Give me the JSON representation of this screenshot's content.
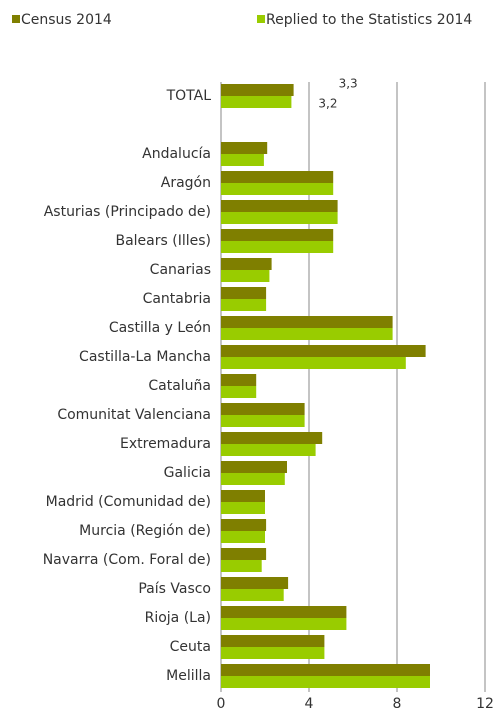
{
  "chart_data": {
    "type": "bar",
    "orientation": "horizontal",
    "categories": [
      "TOTAL",
      null,
      "Andalucía",
      "Aragón",
      "Asturias (Principado de)",
      "Balears (Illes)",
      "Canarias",
      "Cantabria",
      "Castilla y León",
      "Castilla-La Mancha",
      "Cataluña",
      "Comunitat Valenciana",
      "Extremadura",
      "Galicia",
      "Madrid (Comunidad de)",
      "Murcia (Región de)",
      "Navarra (Com. Foral de)",
      "País Vasco",
      "Rioja (La)",
      "Ceuta",
      "Melilla"
    ],
    "series": [
      {
        "name": "Census 2014",
        "color": "#7f7f00",
        "values": [
          3.3,
          null,
          2.1,
          5.1,
          5.3,
          5.1,
          2.3,
          2.05,
          7.8,
          9.3,
          1.6,
          3.8,
          4.6,
          3.0,
          2.0,
          2.05,
          2.05,
          3.05,
          5.7,
          4.7,
          9.5
        ],
        "value_labels": [
          "3,3",
          null,
          null,
          null,
          null,
          null,
          null,
          null,
          null,
          null,
          null,
          null,
          null,
          null,
          null,
          null,
          null,
          null,
          null,
          null,
          null
        ]
      },
      {
        "name": "Replied to the Statistics 2014",
        "color": "#99cc00",
        "values": [
          3.2,
          null,
          1.95,
          5.1,
          5.3,
          5.1,
          2.2,
          2.05,
          7.8,
          8.4,
          1.6,
          3.8,
          4.3,
          2.9,
          2.0,
          2.0,
          1.85,
          2.85,
          5.7,
          4.7,
          9.5
        ],
        "value_labels": [
          "3,2",
          null,
          null,
          null,
          null,
          null,
          null,
          null,
          null,
          null,
          null,
          null,
          null,
          null,
          null,
          null,
          null,
          null,
          null,
          null,
          null
        ]
      }
    ],
    "xlim": [
      0,
      12
    ],
    "xticks": [
      0,
      4,
      8,
      12
    ],
    "grid": true,
    "legend": "top"
  }
}
